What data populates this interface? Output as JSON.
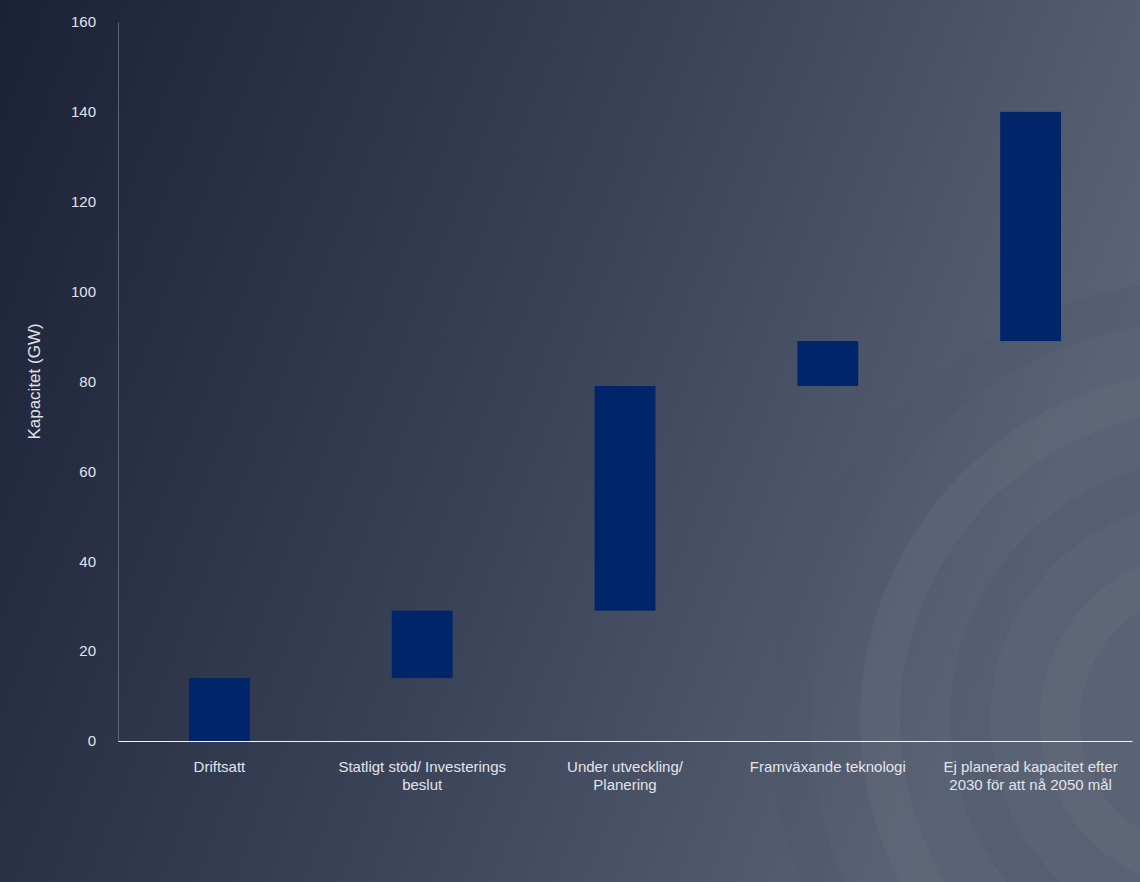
{
  "chart_data": {
    "type": "waterfall",
    "y_axis_label": "Kapacitet (GW)",
    "categories": [
      "Driftsatt",
      "Statligt stöd/ Investerings beslut",
      "Under utveckling/ Planering",
      "Framväxande teknologi",
      "Ej planerad kapacitet efter 2030 för att nå 2050 mål"
    ],
    "values": [
      14,
      15,
      50,
      10,
      51
    ],
    "color": "#00256a",
    "ylim": [
      0,
      160
    ],
    "yticks": [
      0,
      20,
      40,
      60,
      80,
      100,
      120,
      140,
      160
    ],
    "grid": false
  }
}
